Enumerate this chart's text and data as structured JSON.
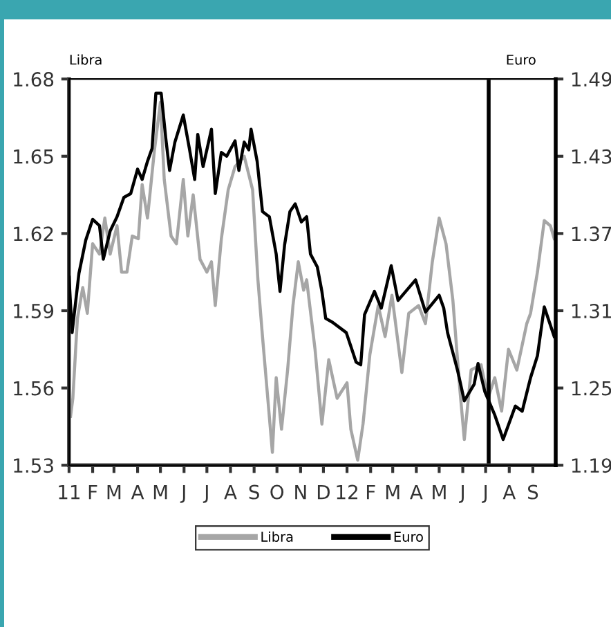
{
  "chart_data": {
    "type": "line",
    "ylabel": "Libra",
    "y2label": "Euro",
    "xlim": [
      "2011-01-01",
      "2012-10-01"
    ],
    "xticks": [
      {
        "value": "2011-01",
        "label": "11"
      },
      {
        "value": "2011-02",
        "label": "F"
      },
      {
        "value": "2011-03",
        "label": "M"
      },
      {
        "value": "2011-04",
        "label": "A"
      },
      {
        "value": "2011-05",
        "label": "M"
      },
      {
        "value": "2011-06",
        "label": "J"
      },
      {
        "value": "2011-07",
        "label": "J"
      },
      {
        "value": "2011-08",
        "label": "A"
      },
      {
        "value": "2011-09",
        "label": "S"
      },
      {
        "value": "2011-10",
        "label": "O"
      },
      {
        "value": "2011-11",
        "label": "N"
      },
      {
        "value": "2011-12",
        "label": "D"
      },
      {
        "value": "2012-01",
        "label": "12"
      },
      {
        "value": "2012-02",
        "label": "F"
      },
      {
        "value": "2012-03",
        "label": "M"
      },
      {
        "value": "2012-04",
        "label": "A"
      },
      {
        "value": "2012-05",
        "label": "M"
      },
      {
        "value": "2012-06",
        "label": "J"
      },
      {
        "value": "2012-07",
        "label": "J"
      },
      {
        "value": "2012-08",
        "label": "A"
      },
      {
        "value": "2012-09",
        "label": "S"
      }
    ],
    "ylim": [
      1.53,
      1.68
    ],
    "yticks": [
      1.53,
      1.56,
      1.59,
      1.62,
      1.65,
      1.68
    ],
    "y2lim": [
      1.19,
      1.49
    ],
    "y2ticks": [
      1.19,
      1.25,
      1.31,
      1.37,
      1.43,
      1.49
    ],
    "grid": false,
    "legend": "bottom",
    "line_style": "solid",
    "marker": "none",
    "ref_lines": [
      {
        "axis": "x",
        "value": "2012-07-05",
        "color": "#000000"
      }
    ],
    "series": [
      {
        "name": "Libra",
        "color": "#a6a6a6",
        "x": [
          "2011-01-03",
          "2011-01-06",
          "2011-01-12",
          "2011-01-19",
          "2011-01-25",
          "2011-02-01",
          "2011-02-10",
          "2011-02-17",
          "2011-02-24",
          "2011-03-05",
          "2011-03-11",
          "2011-03-18",
          "2011-03-25",
          "2011-04-02",
          "2011-04-07",
          "2011-04-14",
          "2011-04-23",
          "2011-05-01",
          "2011-05-06",
          "2011-05-15",
          "2011-05-22",
          "2011-05-31",
          "2011-06-06",
          "2011-06-13",
          "2011-06-22",
          "2011-07-01",
          "2011-07-07",
          "2011-07-12",
          "2011-07-20",
          "2011-07-29",
          "2011-08-07",
          "2011-08-19",
          "2011-08-30",
          "2011-09-06",
          "2011-09-12",
          "2011-09-25",
          "2011-09-30",
          "2011-10-07",
          "2011-10-15",
          "2011-10-22",
          "2011-10-29",
          "2011-11-05",
          "2011-11-09",
          "2011-11-20",
          "2011-11-29",
          "2011-12-08",
          "2011-12-19",
          "2012-01-01",
          "2012-01-06",
          "2012-01-15",
          "2012-01-22",
          "2012-01-31",
          "2012-02-11",
          "2012-02-20",
          "2012-02-29",
          "2012-03-13",
          "2012-03-22",
          "2012-04-04",
          "2012-04-13",
          "2012-04-22",
          "2012-05-01",
          "2012-05-10",
          "2012-05-19",
          "2012-05-28",
          "2012-06-03",
          "2012-06-12",
          "2012-06-25",
          "2012-07-04",
          "2012-07-13",
          "2012-07-22",
          "2012-07-31",
          "2012-08-11",
          "2012-08-24",
          "2012-08-29",
          "2012-09-07",
          "2012-09-16",
          "2012-09-24",
          "2012-09-29"
        ],
        "values": [
          1.549,
          1.556,
          1.587,
          1.599,
          1.589,
          1.616,
          1.612,
          1.626,
          1.612,
          1.623,
          1.605,
          1.605,
          1.619,
          1.618,
          1.639,
          1.626,
          1.652,
          1.671,
          1.641,
          1.619,
          1.616,
          1.641,
          1.619,
          1.635,
          1.61,
          1.605,
          1.609,
          1.592,
          1.618,
          1.637,
          1.646,
          1.65,
          1.637,
          1.602,
          1.58,
          1.535,
          1.564,
          1.544,
          1.567,
          1.592,
          1.609,
          1.598,
          1.602,
          1.575,
          1.546,
          1.571,
          1.556,
          1.562,
          1.544,
          1.532,
          1.546,
          1.573,
          1.592,
          1.58,
          1.596,
          1.566,
          1.589,
          1.592,
          1.585,
          1.609,
          1.626,
          1.616,
          1.594,
          1.56,
          1.54,
          1.567,
          1.569,
          1.556,
          1.564,
          1.551,
          1.575,
          1.567,
          1.585,
          1.589,
          1.605,
          1.625,
          1.623,
          1.618
        ]
      },
      {
        "name": "Euro",
        "color": "#000000",
        "axis": "y2",
        "x": [
          "2011-01-01",
          "2011-01-05",
          "2011-01-14",
          "2011-01-23",
          "2011-02-01",
          "2011-02-10",
          "2011-02-15",
          "2011-02-24",
          "2011-03-05",
          "2011-03-14",
          "2011-03-23",
          "2011-04-01",
          "2011-04-07",
          "2011-04-14",
          "2011-04-20",
          "2011-04-25",
          "2011-05-02",
          "2011-05-08",
          "2011-05-13",
          "2011-05-20",
          "2011-05-31",
          "2011-06-08",
          "2011-06-15",
          "2011-06-19",
          "2011-06-26",
          "2011-07-07",
          "2011-07-12",
          "2011-07-20",
          "2011-07-27",
          "2011-08-07",
          "2011-08-12",
          "2011-08-19",
          "2011-08-25",
          "2011-08-28",
          "2011-09-05",
          "2011-09-12",
          "2011-09-21",
          "2011-09-30",
          "2011-10-05",
          "2011-10-11",
          "2011-10-18",
          "2011-10-25",
          "2011-11-02",
          "2011-11-09",
          "2011-11-14",
          "2011-11-23",
          "2011-11-29",
          "2011-12-04",
          "2011-12-13",
          "2011-12-31",
          "2012-01-13",
          "2012-01-19",
          "2012-01-24",
          "2012-02-06",
          "2012-02-15",
          "2012-02-28",
          "2012-03-08",
          "2012-03-31",
          "2012-04-13",
          "2012-05-01",
          "2012-05-07",
          "2012-05-12",
          "2012-05-25",
          "2012-06-03",
          "2012-06-16",
          "2012-06-21",
          "2012-06-30",
          "2012-07-13",
          "2012-07-24",
          "2012-08-09",
          "2012-08-18",
          "2012-08-29",
          "2012-09-07",
          "2012-09-16",
          "2012-09-29"
        ],
        "values": [
          1.336,
          1.293,
          1.339,
          1.365,
          1.381,
          1.376,
          1.35,
          1.372,
          1.383,
          1.398,
          1.401,
          1.42,
          1.412,
          1.426,
          1.436,
          1.479,
          1.479,
          1.444,
          1.419,
          1.441,
          1.462,
          1.436,
          1.412,
          1.447,
          1.422,
          1.451,
          1.401,
          1.433,
          1.43,
          1.442,
          1.419,
          1.441,
          1.435,
          1.451,
          1.426,
          1.387,
          1.383,
          1.354,
          1.325,
          1.361,
          1.387,
          1.393,
          1.379,
          1.383,
          1.354,
          1.344,
          1.325,
          1.304,
          1.301,
          1.293,
          1.27,
          1.268,
          1.307,
          1.325,
          1.312,
          1.345,
          1.318,
          1.334,
          1.309,
          1.322,
          1.312,
          1.293,
          1.264,
          1.24,
          1.253,
          1.269,
          1.247,
          1.229,
          1.21,
          1.236,
          1.232,
          1.258,
          1.275,
          1.313,
          1.29
        ]
      }
    ]
  }
}
